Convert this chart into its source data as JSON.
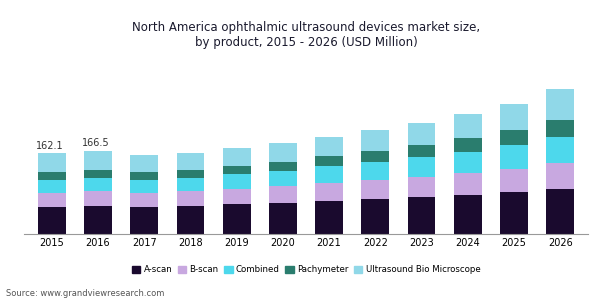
{
  "title": "North America ophthalmic ultrasound devices market size,\nby product, 2015 - 2026 (USD Million)",
  "years": [
    2015,
    2016,
    2017,
    2018,
    2019,
    2020,
    2021,
    2022,
    2023,
    2024,
    2025,
    2026
  ],
  "series": {
    "A-scan": [
      55,
      57,
      55,
      57,
      60,
      63,
      67,
      70,
      74,
      79,
      84,
      90
    ],
    "B-scan": [
      28,
      29,
      28,
      29,
      31,
      33,
      35,
      38,
      40,
      43,
      47,
      52
    ],
    "Combined": [
      26,
      27,
      26,
      27,
      29,
      31,
      34,
      37,
      40,
      43,
      47,
      53
    ],
    "Pachymeter": [
      16,
      16,
      15,
      16,
      17,
      18,
      20,
      22,
      24,
      27,
      30,
      33
    ],
    "Ultrasound Bio Microscope": [
      37,
      38,
      34,
      34,
      36,
      37,
      39,
      41,
      44,
      48,
      53,
      62
    ]
  },
  "colors": {
    "A-scan": "#1a0a2e",
    "B-scan": "#c8a8e0",
    "Combined": "#4dd8ec",
    "Pachymeter": "#2a7d6e",
    "Ultrasound Bio Microscope": "#90d8e8"
  },
  "annotations": {
    "2015": "162.1",
    "2016": "166.5"
  },
  "source": "Source: www.grandviewresearch.com",
  "bg_color": "#ffffff",
  "title_color": "#1a1a2e",
  "bar_width": 0.6,
  "ylim": [
    0,
    360
  ]
}
